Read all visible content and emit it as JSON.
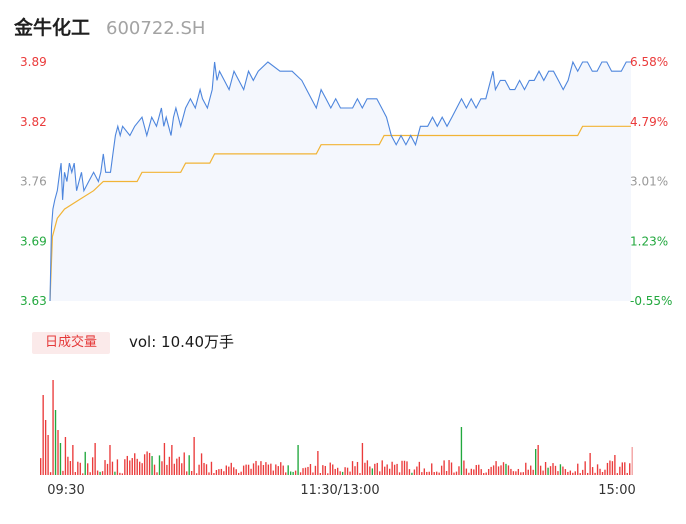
{
  "header": {
    "name": "金牛化工",
    "code": "600722.SH"
  },
  "volume_panel": {
    "tab_label": "日成交量",
    "vol_prefix": "vol: ",
    "vol_value": "10.40万手"
  },
  "colors": {
    "price_line": "#4e86dd",
    "price_fill": "#f4f7fd",
    "avg_line": "#f1b436",
    "up": "#ea3b3b",
    "down": "#22a83e",
    "neutral": "#999999"
  },
  "chart_data": [
    {
      "type": "line",
      "y_left_ticks": [
        "3.89",
        "3.82",
        "3.76",
        "3.69",
        "3.63"
      ],
      "y_right_ticks": [
        "6.58%",
        "4.79%",
        "3.01%",
        "1.23%",
        "-0.55%"
      ],
      "ylim": [
        3.63,
        3.89
      ],
      "series": [
        {
          "role": "price",
          "points": [
            [
              0,
              3.63
            ],
            [
              0.6,
              3.71
            ],
            [
              1.2,
              3.73
            ],
            [
              2,
              3.74
            ],
            [
              3,
              3.75
            ],
            [
              4,
              3.77
            ],
            [
              4.6,
              3.78
            ],
            [
              5.2,
              3.74
            ],
            [
              6,
              3.77
            ],
            [
              7,
              3.76
            ],
            [
              8,
              3.78
            ],
            [
              9,
              3.77
            ],
            [
              10,
              3.78
            ],
            [
              11,
              3.75
            ],
            [
              12,
              3.76
            ],
            [
              13,
              3.77
            ],
            [
              14,
              3.75
            ],
            [
              16,
              3.76
            ],
            [
              18,
              3.77
            ],
            [
              20,
              3.76
            ],
            [
              21,
              3.77
            ],
            [
              22,
              3.79
            ],
            [
              23,
              3.77
            ],
            [
              25,
              3.77
            ],
            [
              26,
              3.79
            ],
            [
              27,
              3.81
            ],
            [
              28,
              3.82
            ],
            [
              29,
              3.81
            ],
            [
              30,
              3.82
            ],
            [
              33,
              3.81
            ],
            [
              35,
              3.82
            ],
            [
              38,
              3.83
            ],
            [
              40,
              3.81
            ],
            [
              42,
              3.83
            ],
            [
              44,
              3.82
            ],
            [
              46,
              3.84
            ],
            [
              47,
              3.82
            ],
            [
              48,
              3.83
            ],
            [
              50,
              3.81
            ],
            [
              51,
              3.83
            ],
            [
              52,
              3.84
            ],
            [
              54,
              3.82
            ],
            [
              56,
              3.84
            ],
            [
              58,
              3.85
            ],
            [
              60,
              3.84
            ],
            [
              62,
              3.86
            ],
            [
              63,
              3.85
            ],
            [
              65,
              3.84
            ],
            [
              67,
              3.86
            ],
            [
              68,
              3.89
            ],
            [
              69,
              3.87
            ],
            [
              70,
              3.88
            ],
            [
              72,
              3.87
            ],
            [
              74,
              3.86
            ],
            [
              76,
              3.88
            ],
            [
              78,
              3.87
            ],
            [
              80,
              3.86
            ],
            [
              82,
              3.88
            ],
            [
              84,
              3.87
            ],
            [
              86,
              3.88
            ],
            [
              90,
              3.89
            ],
            [
              95,
              3.88
            ],
            [
              100,
              3.88
            ],
            [
              104,
              3.87
            ],
            [
              106,
              3.86
            ],
            [
              108,
              3.85
            ],
            [
              110,
              3.84
            ],
            [
              112,
              3.86
            ],
            [
              114,
              3.85
            ],
            [
              116,
              3.84
            ],
            [
              118,
              3.85
            ],
            [
              120,
              3.84
            ],
            [
              125,
              3.84
            ],
            [
              127,
              3.85
            ],
            [
              129,
              3.84
            ],
            [
              131,
              3.85
            ],
            [
              135,
              3.85
            ],
            [
              137,
              3.84
            ],
            [
              139,
              3.83
            ],
            [
              141,
              3.81
            ],
            [
              143,
              3.8
            ],
            [
              145,
              3.81
            ],
            [
              147,
              3.8
            ],
            [
              149,
              3.81
            ],
            [
              151,
              3.8
            ],
            [
              153,
              3.82
            ],
            [
              156,
              3.82
            ],
            [
              158,
              3.83
            ],
            [
              160,
              3.82
            ],
            [
              162,
              3.83
            ],
            [
              164,
              3.82
            ],
            [
              166,
              3.83
            ],
            [
              168,
              3.84
            ],
            [
              170,
              3.85
            ],
            [
              172,
              3.84
            ],
            [
              174,
              3.85
            ],
            [
              176,
              3.84
            ],
            [
              178,
              3.85
            ],
            [
              180,
              3.85
            ],
            [
              182,
              3.87
            ],
            [
              183,
              3.88
            ],
            [
              184,
              3.86
            ],
            [
              186,
              3.87
            ],
            [
              188,
              3.87
            ],
            [
              190,
              3.86
            ],
            [
              192,
              3.86
            ],
            [
              194,
              3.87
            ],
            [
              196,
              3.86
            ],
            [
              198,
              3.87
            ],
            [
              200,
              3.87
            ],
            [
              202,
              3.88
            ],
            [
              204,
              3.87
            ],
            [
              206,
              3.88
            ],
            [
              208,
              3.88
            ],
            [
              210,
              3.87
            ],
            [
              212,
              3.86
            ],
            [
              214,
              3.87
            ],
            [
              216,
              3.89
            ],
            [
              218,
              3.88
            ],
            [
              220,
              3.89
            ],
            [
              222,
              3.89
            ],
            [
              224,
              3.88
            ],
            [
              226,
              3.88
            ],
            [
              228,
              3.89
            ],
            [
              230,
              3.89
            ],
            [
              232,
              3.88
            ],
            [
              234,
              3.88
            ],
            [
              236,
              3.88
            ],
            [
              238,
              3.89
            ],
            [
              240,
              3.89
            ]
          ]
        },
        {
          "role": "average",
          "points": [
            [
              0,
              3.63
            ],
            [
              1,
              3.7
            ],
            [
              3,
              3.72
            ],
            [
              6,
              3.73
            ],
            [
              12,
              3.74
            ],
            [
              18,
              3.75
            ],
            [
              22,
              3.76
            ],
            [
              36,
              3.76
            ],
            [
              38,
              3.77
            ],
            [
              54,
              3.77
            ],
            [
              56,
              3.78
            ],
            [
              66,
              3.78
            ],
            [
              68,
              3.79
            ],
            [
              110,
              3.79
            ],
            [
              112,
              3.8
            ],
            [
              136,
              3.8
            ],
            [
              138,
              3.81
            ],
            [
              160,
              3.81
            ],
            [
              162,
              3.81
            ],
            [
              218,
              3.81
            ],
            [
              220,
              3.82
            ],
            [
              240,
              3.82
            ]
          ]
        }
      ]
    },
    {
      "type": "bar",
      "x_ticks": [
        "09:30",
        "11:30/13:00",
        "15:00"
      ],
      "x_tick_positions": [
        0,
        120,
        240
      ],
      "n_bars": 240
    }
  ]
}
